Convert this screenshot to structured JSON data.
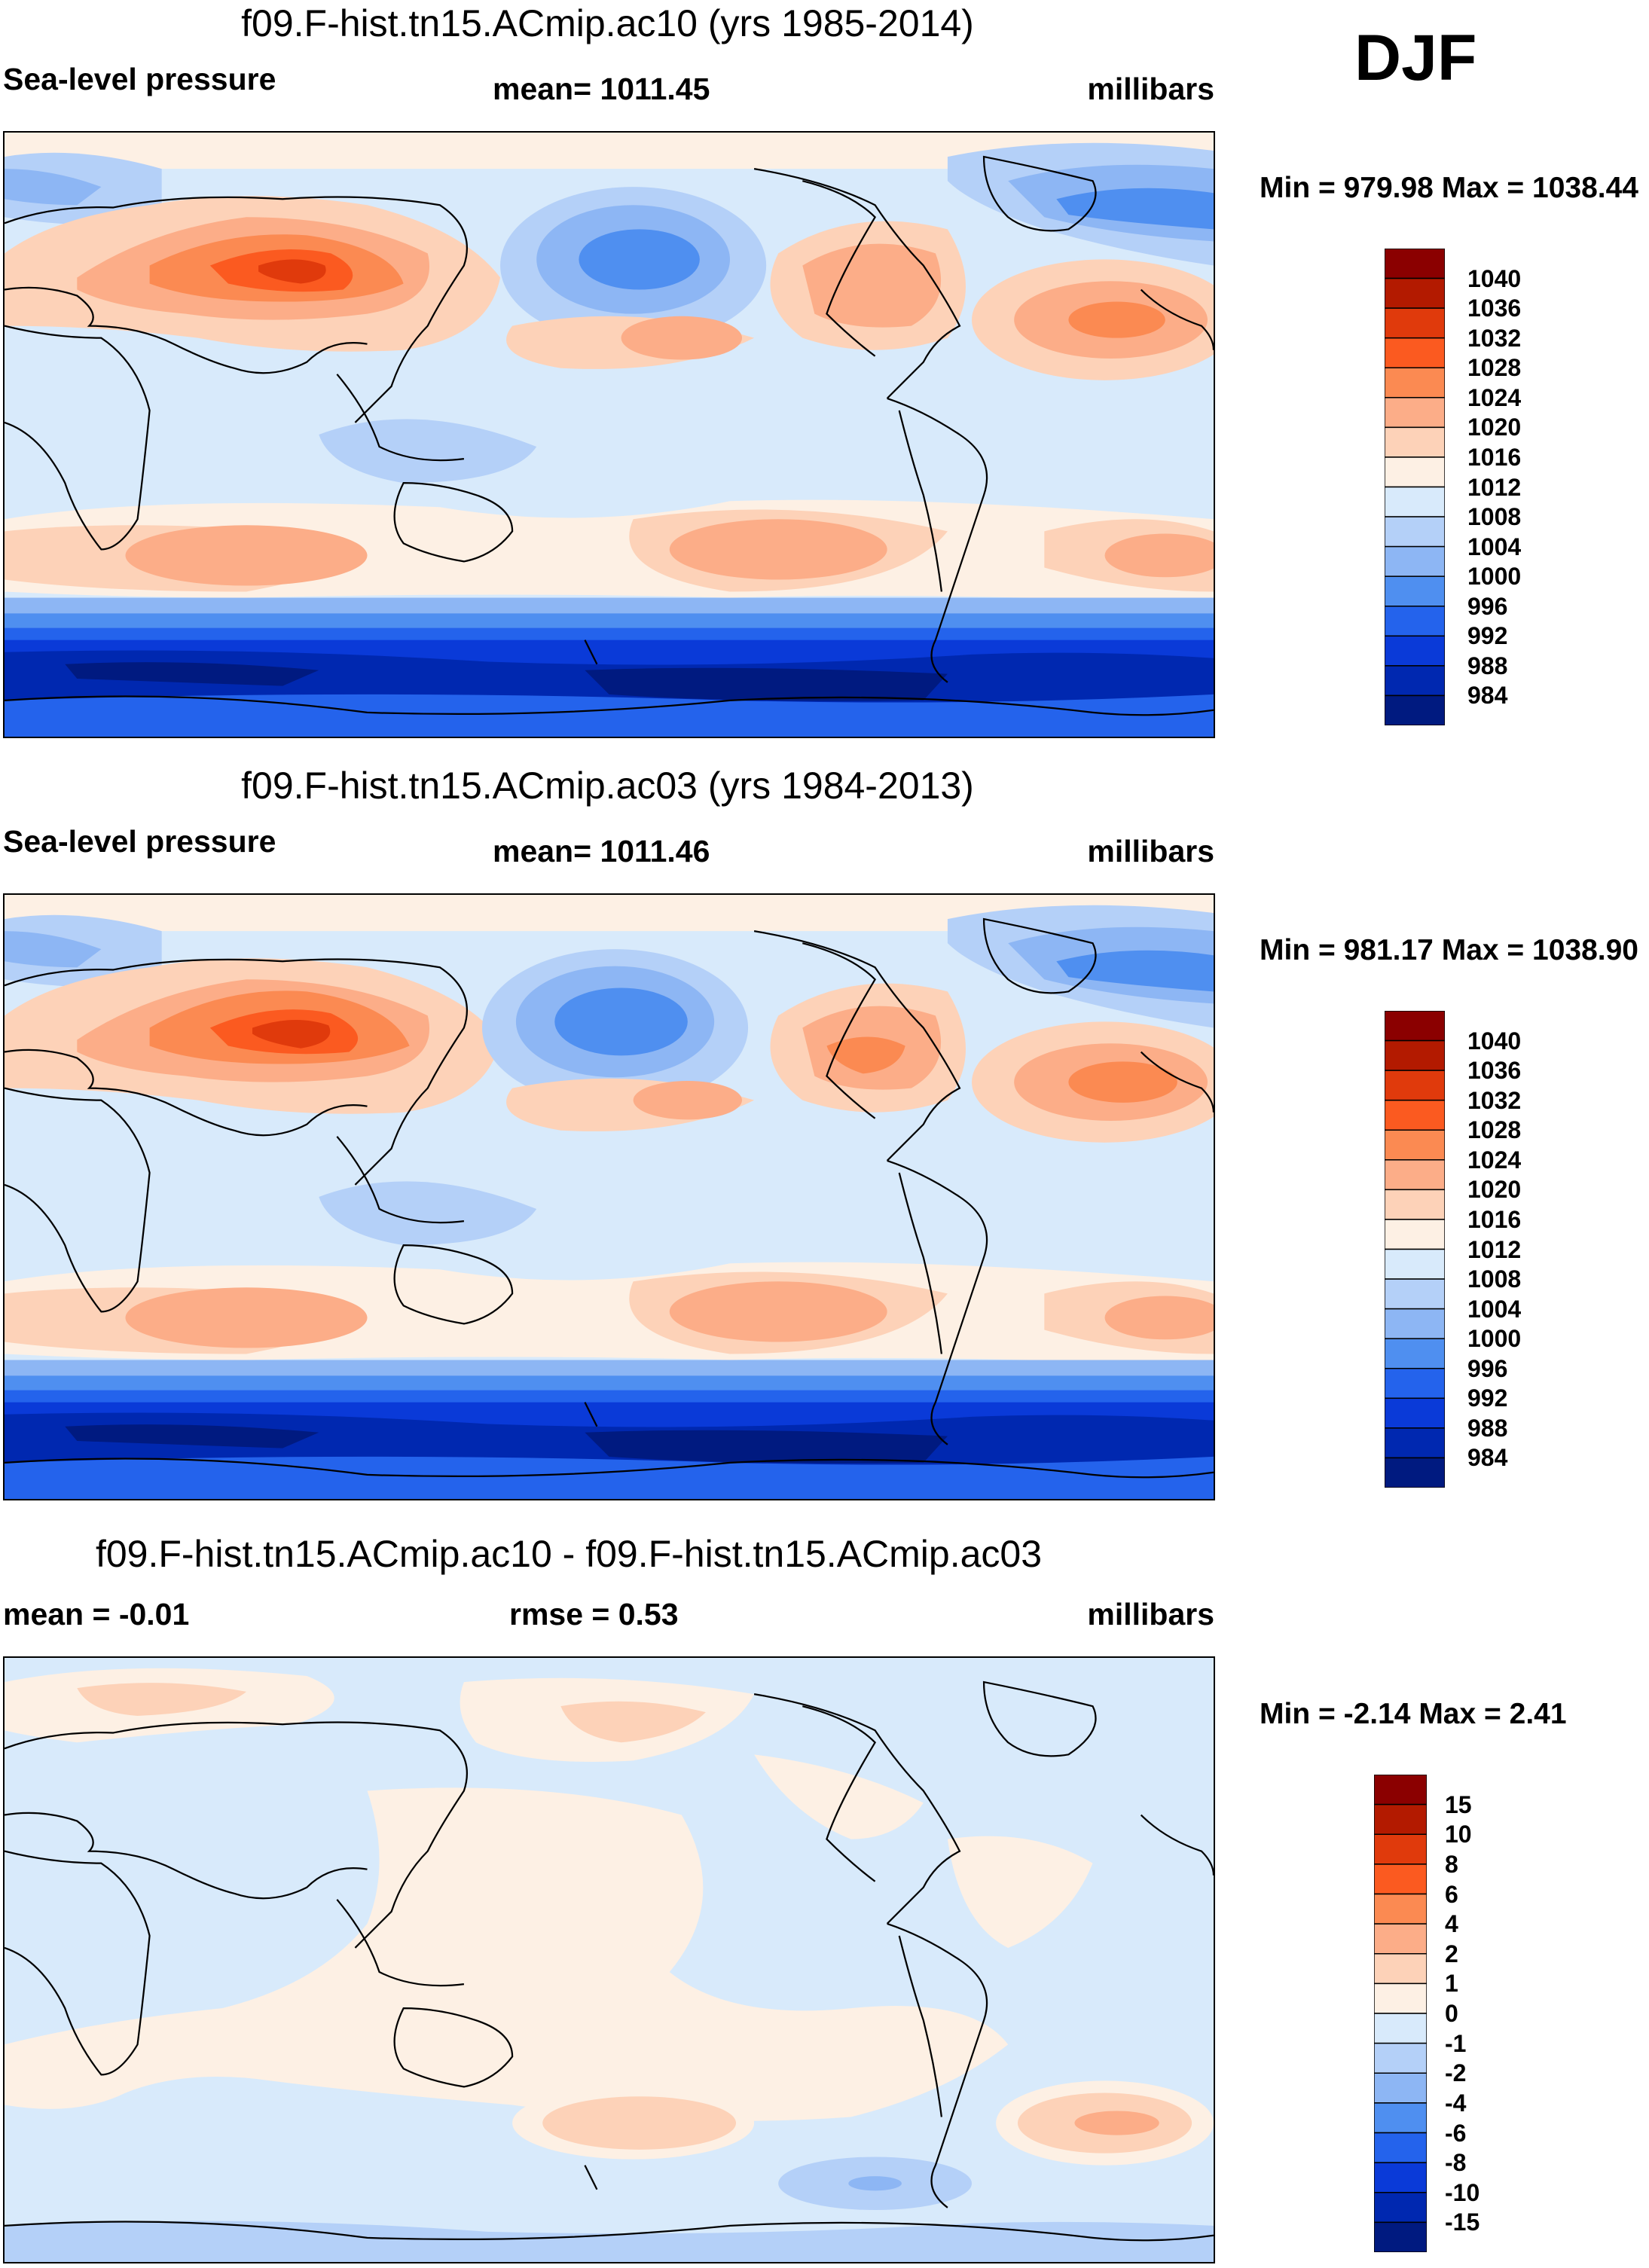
{
  "season": "DJF",
  "panels": [
    {
      "title": "f09.F-hist.tn15.ACmip.ac10 (yrs 1985-2014)",
      "left_label": "Sea-level pressure",
      "center_label": "mean= 1011.45",
      "right_label": "millibars",
      "minmax": "Min = 979.98 Max = 1038.44",
      "kind": "abs"
    },
    {
      "title": "f09.F-hist.tn15.ACmip.ac03 (yrs 1984-2013)",
      "left_label": "Sea-level pressure",
      "center_label": "mean= 1011.46",
      "right_label": "millibars",
      "minmax": "Min = 981.17 Max = 1038.90",
      "kind": "abs"
    },
    {
      "title": "f09.F-hist.tn15.ACmip.ac10 - f09.F-hist.tn15.ACmip.ac03",
      "left_label": "mean =  -0.01",
      "center_label": "rmse =   0.53",
      "right_label": "millibars",
      "minmax": "Min =  -2.14 Max =   2.41",
      "kind": "diff"
    }
  ],
  "colorbars": {
    "abs": {
      "labels": [
        "1040",
        "1036",
        "1032",
        "1028",
        "1024",
        "1020",
        "1016",
        "1012",
        "1008",
        "1004",
        "1000",
        "996",
        "992",
        "988",
        "984"
      ],
      "colors": [
        "#8b0000",
        "#b31a00",
        "#e03a0c",
        "#fb5a20",
        "#fb8a52",
        "#fcad88",
        "#fdd2b8",
        "#fdf0e4",
        "#d8eafb",
        "#b4d0f8",
        "#8db6f4",
        "#4f8ff0",
        "#2463ec",
        "#0a3ad8",
        "#0028b0",
        "#001a80"
      ]
    },
    "diff": {
      "labels": [
        "15",
        "10",
        "8",
        "6",
        "4",
        "2",
        "1",
        "0",
        "-1",
        "-2",
        "-4",
        "-6",
        "-8",
        "-10",
        "-15"
      ],
      "colors": [
        "#8b0000",
        "#b31a00",
        "#e03a0c",
        "#fb5a20",
        "#fb8a52",
        "#fcad88",
        "#fdd2b8",
        "#fdf0e4",
        "#d8eafb",
        "#b4d0f8",
        "#8db6f4",
        "#4f8ff0",
        "#2463ec",
        "#0a3ad8",
        "#0028b0",
        "#001a80"
      ]
    }
  }
}
